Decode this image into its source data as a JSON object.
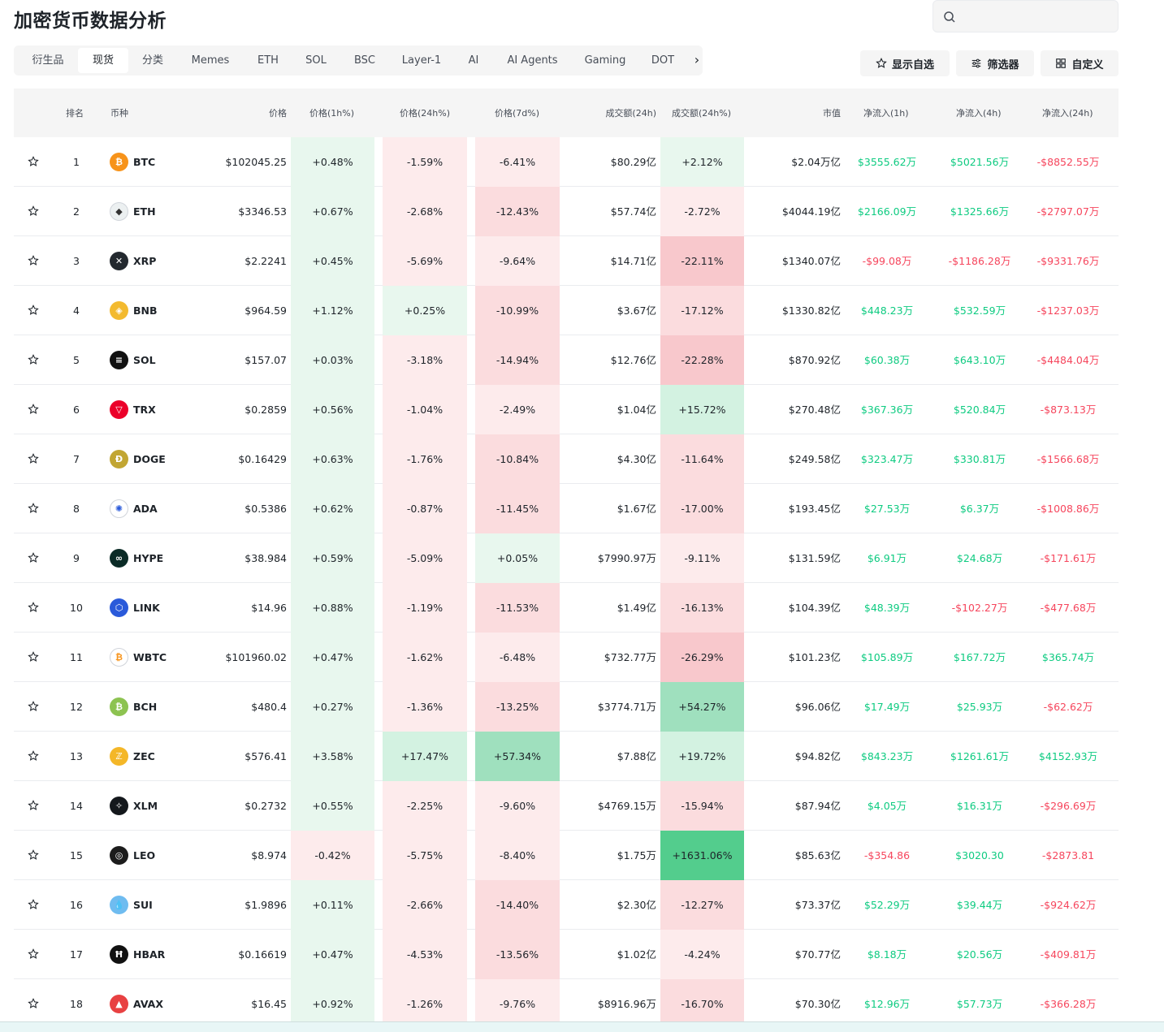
{
  "header": {
    "title": "加密货币数据分析",
    "search_placeholder": ""
  },
  "tabs": [
    {
      "label": "衍生品",
      "active": false
    },
    {
      "label": "现货",
      "active": true
    },
    {
      "label": "分类",
      "active": false
    },
    {
      "label": "Memes",
      "active": false
    },
    {
      "label": "ETH",
      "active": false
    },
    {
      "label": "SOL",
      "active": false
    },
    {
      "label": "BSC",
      "active": false
    },
    {
      "label": "Layer-1",
      "active": false
    },
    {
      "label": "AI",
      "active": false
    },
    {
      "label": "AI Agents",
      "active": false
    },
    {
      "label": "Gaming",
      "active": false
    },
    {
      "label": "DOT",
      "active": false
    }
  ],
  "actions": {
    "watchlist": "显示自选",
    "filter": "筛选器",
    "customize": "自定义"
  },
  "columns": {
    "rank": "排名",
    "coin": "币种",
    "price": "价格",
    "p1h": "价格(1h%)",
    "p24h": "价格(24h%)",
    "p7d": "价格(7d%)",
    "vol": "成交额(24h)",
    "vol24": "成交额(24h%)",
    "mcap": "市值",
    "nf1h": "净流入(1h)",
    "nf4h": "净流入(4h)",
    "nf24h": "净流入(24h)"
  },
  "rows": [
    {
      "rank": "1",
      "symbol": "BTC",
      "icon": "bitcoin-icon",
      "color": "#f7931a",
      "glyph": "₿",
      "price": "$102045.25",
      "p1h": "+0.48%",
      "p24h": "-1.59%",
      "p7d": "-6.41%",
      "vol": "$80.29亿",
      "vol24": "+2.12%",
      "mcap": "$2.04万亿",
      "nf1h": "$3555.62万",
      "nf4h": "$5021.56万",
      "nf24h": "-$8852.55万"
    },
    {
      "rank": "2",
      "symbol": "ETH",
      "icon": "ethereum-icon",
      "color": "#ecf0f1",
      "glyph": "◆",
      "price": "$3346.53",
      "p1h": "+0.67%",
      "p24h": "-2.68%",
      "p7d": "-12.43%",
      "vol": "$57.74亿",
      "vol24": "-2.72%",
      "mcap": "$4044.19亿",
      "nf1h": "$2166.09万",
      "nf4h": "$1325.66万",
      "nf24h": "-$2797.07万"
    },
    {
      "rank": "3",
      "symbol": "XRP",
      "icon": "xrp-icon",
      "color": "#23292f",
      "glyph": "✕",
      "price": "$2.2241",
      "p1h": "+0.45%",
      "p24h": "-5.69%",
      "p7d": "-9.64%",
      "vol": "$14.71亿",
      "vol24": "-22.11%",
      "mcap": "$1340.07亿",
      "nf1h": "-$99.08万",
      "nf4h": "-$1186.28万",
      "nf24h": "-$9331.76万"
    },
    {
      "rank": "4",
      "symbol": "BNB",
      "icon": "bnb-icon",
      "color": "#f3ba2f",
      "glyph": "◈",
      "price": "$964.59",
      "p1h": "+1.12%",
      "p24h": "+0.25%",
      "p7d": "-10.99%",
      "vol": "$3.67亿",
      "vol24": "-17.12%",
      "mcap": "$1330.82亿",
      "nf1h": "$448.23万",
      "nf4h": "$532.59万",
      "nf24h": "-$1237.03万"
    },
    {
      "rank": "5",
      "symbol": "SOL",
      "icon": "solana-icon",
      "color": "#111111",
      "glyph": "≡",
      "price": "$157.07",
      "p1h": "+0.03%",
      "p24h": "-3.18%",
      "p7d": "-14.94%",
      "vol": "$12.76亿",
      "vol24": "-22.28%",
      "mcap": "$870.92亿",
      "nf1h": "$60.38万",
      "nf4h": "$643.10万",
      "nf24h": "-$4484.04万"
    },
    {
      "rank": "6",
      "symbol": "TRX",
      "icon": "tron-icon",
      "color": "#eb0029",
      "glyph": "▽",
      "price": "$0.2859",
      "p1h": "+0.56%",
      "p24h": "-1.04%",
      "p7d": "-2.49%",
      "vol": "$1.04亿",
      "vol24": "+15.72%",
      "mcap": "$270.48亿",
      "nf1h": "$367.36万",
      "nf4h": "$520.84万",
      "nf24h": "-$873.13万"
    },
    {
      "rank": "7",
      "symbol": "DOGE",
      "icon": "doge-icon",
      "color": "#c2a633",
      "glyph": "Ð",
      "price": "$0.16429",
      "p1h": "+0.63%",
      "p24h": "-1.76%",
      "p7d": "-10.84%",
      "vol": "$4.30亿",
      "vol24": "-11.64%",
      "mcap": "$249.58亿",
      "nf1h": "$323.47万",
      "nf4h": "$330.81万",
      "nf24h": "-$1566.68万"
    },
    {
      "rank": "8",
      "symbol": "ADA",
      "icon": "cardano-icon",
      "color": "#ffffff",
      "glyph": "✺",
      "price": "$0.5386",
      "p1h": "+0.62%",
      "p24h": "-0.87%",
      "p7d": "-11.45%",
      "vol": "$1.67亿",
      "vol24": "-17.00%",
      "mcap": "$193.45亿",
      "nf1h": "$27.53万",
      "nf4h": "$6.37万",
      "nf24h": "-$1008.86万"
    },
    {
      "rank": "9",
      "symbol": "HYPE",
      "icon": "hyperliquid-icon",
      "color": "#0b2b26",
      "glyph": "∞",
      "price": "$38.984",
      "p1h": "+0.59%",
      "p24h": "-5.09%",
      "p7d": "+0.05%",
      "vol": "$7990.97万",
      "vol24": "-9.11%",
      "mcap": "$131.59亿",
      "nf1h": "$6.91万",
      "nf4h": "$24.68万",
      "nf24h": "-$171.61万"
    },
    {
      "rank": "10",
      "symbol": "LINK",
      "icon": "chainlink-icon",
      "color": "#2a5ada",
      "glyph": "⬡",
      "price": "$14.96",
      "p1h": "+0.88%",
      "p24h": "-1.19%",
      "p7d": "-11.53%",
      "vol": "$1.49亿",
      "vol24": "-16.13%",
      "mcap": "$104.39亿",
      "nf1h": "$48.39万",
      "nf4h": "-$102.27万",
      "nf24h": "-$477.68万"
    },
    {
      "rank": "11",
      "symbol": "WBTC",
      "icon": "wbtc-icon",
      "color": "#ffffff",
      "glyph": "₿",
      "price": "$101960.02",
      "p1h": "+0.47%",
      "p24h": "-1.62%",
      "p7d": "-6.48%",
      "vol": "$732.77万",
      "vol24": "-26.29%",
      "mcap": "$101.23亿",
      "nf1h": "$105.89万",
      "nf4h": "$167.72万",
      "nf24h": "$365.74万"
    },
    {
      "rank": "12",
      "symbol": "BCH",
      "icon": "bitcoin-cash-icon",
      "color": "#8dc351",
      "glyph": "₿",
      "price": "$480.4",
      "p1h": "+0.27%",
      "p24h": "-1.36%",
      "p7d": "-13.25%",
      "vol": "$3774.71万",
      "vol24": "+54.27%",
      "mcap": "$96.06亿",
      "nf1h": "$17.49万",
      "nf4h": "$25.93万",
      "nf24h": "-$62.62万"
    },
    {
      "rank": "13",
      "symbol": "ZEC",
      "icon": "zcash-icon",
      "color": "#f4b728",
      "glyph": "ℤ",
      "price": "$576.41",
      "p1h": "+3.58%",
      "p24h": "+17.47%",
      "p7d": "+57.34%",
      "vol": "$7.88亿",
      "vol24": "+19.72%",
      "mcap": "$94.82亿",
      "nf1h": "$843.23万",
      "nf4h": "$1261.61万",
      "nf24h": "$4152.93万"
    },
    {
      "rank": "14",
      "symbol": "XLM",
      "icon": "stellar-icon",
      "color": "#14181c",
      "glyph": "✧",
      "price": "$0.2732",
      "p1h": "+0.55%",
      "p24h": "-2.25%",
      "p7d": "-9.60%",
      "vol": "$4769.15万",
      "vol24": "-15.94%",
      "mcap": "$87.94亿",
      "nf1h": "$4.05万",
      "nf4h": "$16.31万",
      "nf24h": "-$296.69万"
    },
    {
      "rank": "15",
      "symbol": "LEO",
      "icon": "leo-icon",
      "color": "#1c1c1c",
      "glyph": "◎",
      "price": "$8.974",
      "p1h": "-0.42%",
      "p24h": "-5.75%",
      "p7d": "-8.40%",
      "vol": "$1.75万",
      "vol24": "+1631.06%",
      "mcap": "$85.63亿",
      "nf1h": "-$354.86",
      "nf4h": "$3020.30",
      "nf24h": "-$2873.81"
    },
    {
      "rank": "16",
      "symbol": "SUI",
      "icon": "sui-icon",
      "color": "#6fbcf0",
      "glyph": "💧",
      "price": "$1.9896",
      "p1h": "+0.11%",
      "p24h": "-2.66%",
      "p7d": "-14.40%",
      "vol": "$2.30亿",
      "vol24": "-12.27%",
      "mcap": "$73.37亿",
      "nf1h": "$52.29万",
      "nf4h": "$39.44万",
      "nf24h": "-$924.62万"
    },
    {
      "rank": "17",
      "symbol": "HBAR",
      "icon": "hedera-icon",
      "color": "#111111",
      "glyph": "Ħ",
      "price": "$0.16619",
      "p1h": "+0.47%",
      "p24h": "-4.53%",
      "p7d": "-13.56%",
      "vol": "$1.02亿",
      "vol24": "-4.24%",
      "mcap": "$70.77亿",
      "nf1h": "$8.18万",
      "nf4h": "$20.56万",
      "nf24h": "-$409.81万"
    },
    {
      "rank": "18",
      "symbol": "AVAX",
      "icon": "avalanche-icon",
      "color": "#e84142",
      "glyph": "▲",
      "price": "$16.45",
      "p1h": "+0.92%",
      "p24h": "-1.26%",
      "p7d": "-9.76%",
      "vol": "$8916.96万",
      "vol24": "-16.70%",
      "mcap": "$70.30亿",
      "nf1h": "$12.96万",
      "nf4h": "$57.73万",
      "nf24h": "-$366.28万"
    }
  ],
  "colors": {
    "up": "#0ecb81",
    "down": "#f6465d",
    "header_bg": "#f5f5f5"
  }
}
